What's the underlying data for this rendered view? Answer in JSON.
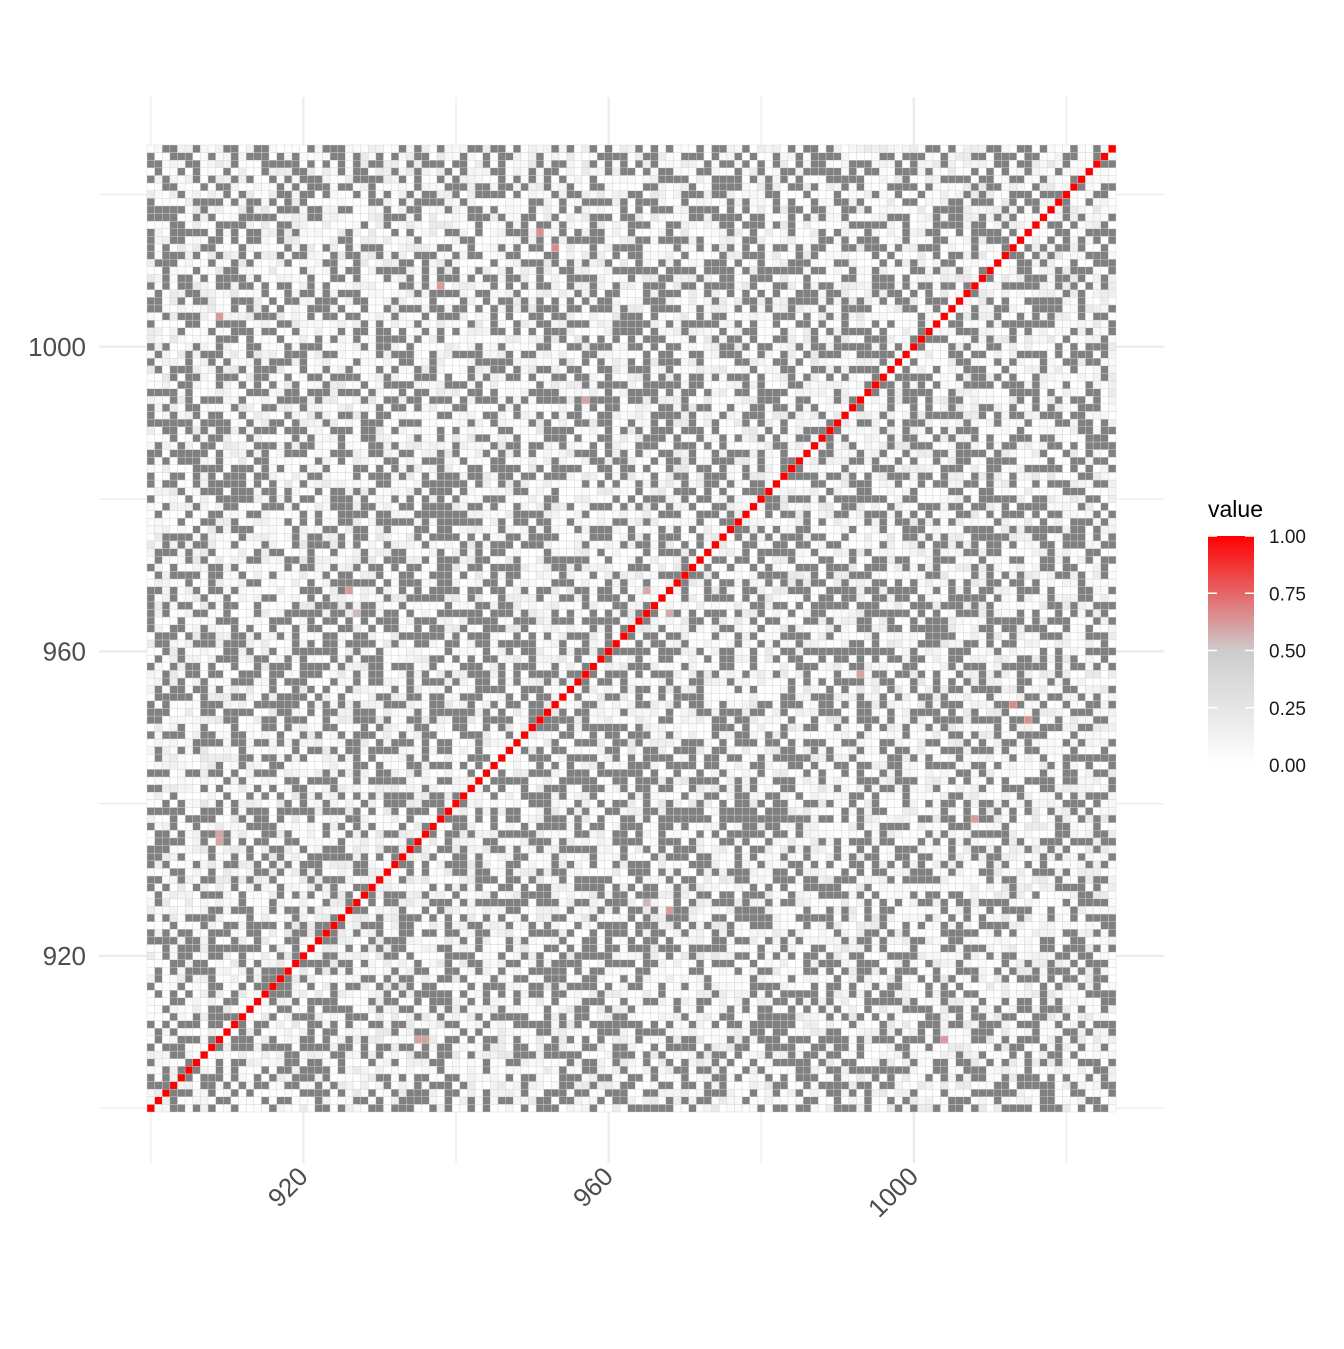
{
  "chart_data": {
    "type": "heatmap",
    "title": "",
    "xlabel": "",
    "ylabel": "",
    "x_range": [
      900,
      1026
    ],
    "y_range": [
      900,
      1026
    ],
    "x_ticks": [
      920,
      960,
      1000
    ],
    "y_ticks": [
      920,
      960,
      1000
    ],
    "x_tick_labels": [
      "920",
      "960",
      "1000"
    ],
    "y_tick_labels": [
      "920",
      "960",
      "1000"
    ],
    "grid": true,
    "diagonal_value": 1.0,
    "value_scale": {
      "name": "value",
      "min": 0.0,
      "max": 1.0,
      "breaks": [
        0.0,
        0.25,
        0.5,
        0.75,
        1.0
      ],
      "break_labels": [
        "0.00",
        "0.25",
        "0.50",
        "0.75",
        "1.00"
      ],
      "low_color": "#ffffff",
      "mid_color": "#cccccc",
      "high_color": "#ff0000"
    },
    "na_color": "#808080",
    "missing_fraction_estimate": 0.42,
    "notable_cells": [
      {
        "x": 951,
        "y": 1015,
        "value": 0.65
      },
      {
        "x": 938,
        "y": 1008,
        "value": 0.62
      },
      {
        "x": 909,
        "y": 1004,
        "value": 0.6
      },
      {
        "x": 926,
        "y": 968,
        "value": 0.62
      },
      {
        "x": 965,
        "y": 968,
        "value": 0.58
      },
      {
        "x": 1013,
        "y": 953,
        "value": 0.66
      },
      {
        "x": 1008,
        "y": 938,
        "value": 0.62
      },
      {
        "x": 909,
        "y": 936,
        "value": 0.6
      },
      {
        "x": 965,
        "y": 927,
        "value": 0.55
      },
      {
        "x": 935,
        "y": 909,
        "value": 0.6
      },
      {
        "x": 1004,
        "y": 909,
        "value": 0.62
      },
      {
        "x": 993,
        "y": 957,
        "value": 0.6
      }
    ]
  },
  "colors": {
    "background": "#ffffff",
    "gridline": "#ebebeb",
    "cell_border": "#d3d3d3",
    "na": "#808080"
  }
}
